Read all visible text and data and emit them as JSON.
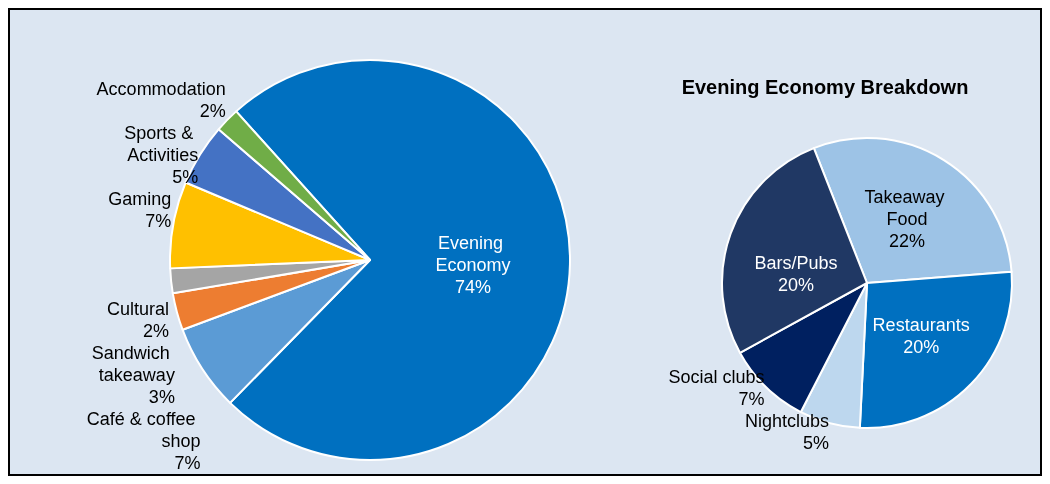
{
  "chart_data": [
    {
      "type": "pie",
      "categories": [
        "Evening Economy",
        "Café & coffee shop",
        "Sandwich takeaway",
        "Cultural",
        "Gaming",
        "Sports & Activities",
        "Accommodation"
      ],
      "values": [
        74,
        7,
        3,
        2,
        7,
        5,
        2
      ],
      "colors": [
        "#0070c0",
        "#5b9bd5",
        "#ed7d31",
        "#a5a5a5",
        "#ffc000",
        "#4472c4",
        "#70ad47"
      ],
      "value_labels": [
        "74%",
        "7%",
        "3%",
        "2%",
        "7%",
        "5%",
        "2%"
      ],
      "legend": false
    },
    {
      "type": "pie",
      "title": "Evening Economy Breakdown",
      "categories": [
        "Takeaway Food",
        "Restaurants",
        "Nightclubs",
        "Social clubs",
        "Bars/Pubs"
      ],
      "values": [
        22,
        20,
        5,
        7,
        20
      ],
      "colors": [
        "#9dc3e6",
        "#0070c0",
        "#bdd7ee",
        "#002060",
        "#203864"
      ],
      "value_labels": [
        "22%",
        "20%",
        "5%",
        "7%",
        "20%"
      ],
      "legend": false
    }
  ]
}
